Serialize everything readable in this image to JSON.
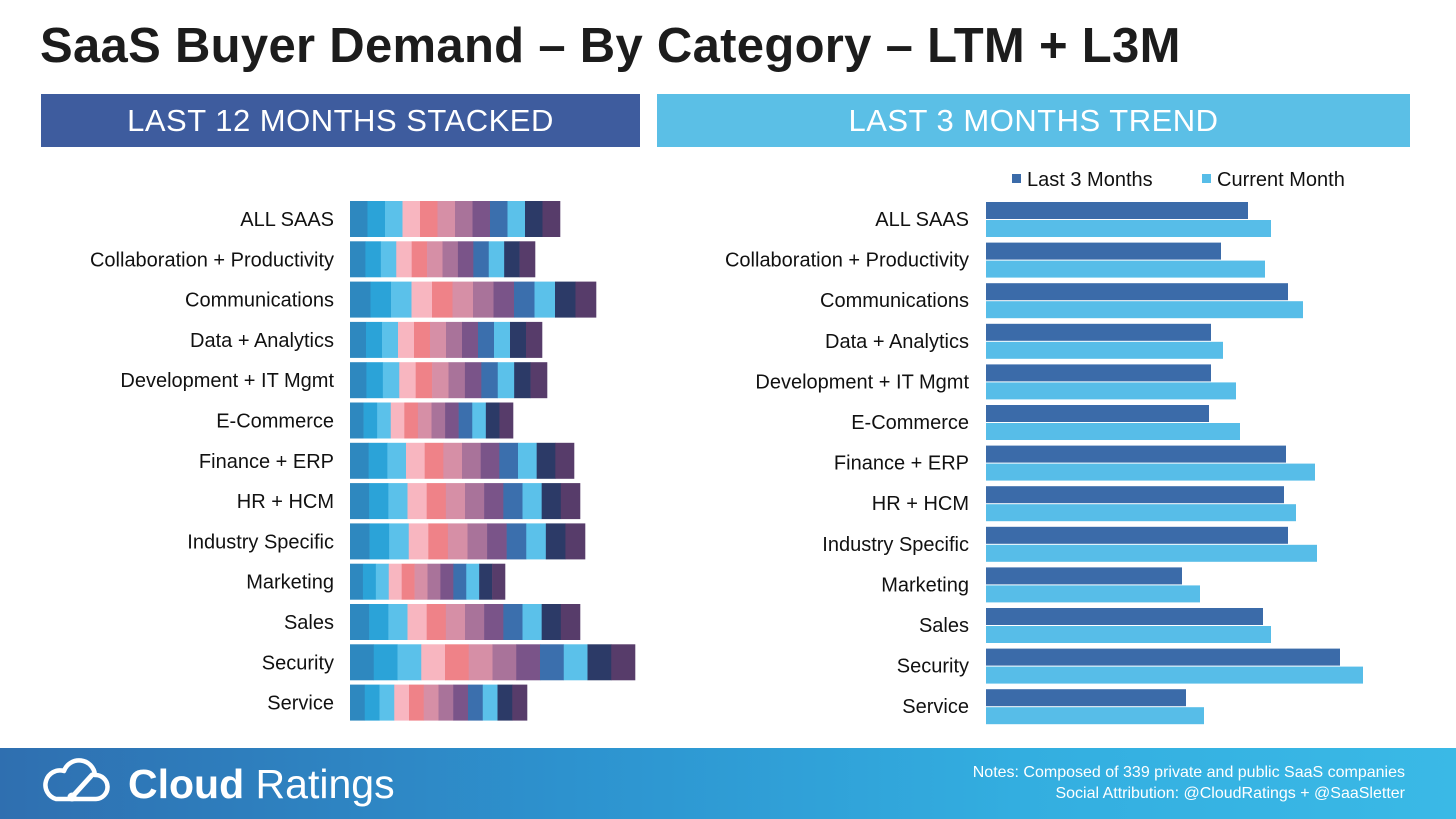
{
  "title": "SaaS Buyer Demand – By Category – LTM + L3M",
  "panels": {
    "ltm_header": "LAST 12 MONTHS STACKED",
    "l3m_header": "LAST 3 MONTHS TREND"
  },
  "footer": {
    "brand_bold": "Cloud",
    "brand_light": "Ratings",
    "notes_line1": "Notes: Composed of 339 private and public SaaS companies",
    "notes_line2": "Social Attribution: @CloudRatings + @SaaSletter"
  },
  "colors": {
    "ltm_header": "#3e5c9e",
    "l3m_header": "#5bbfe6",
    "last3": "#3b6ba9",
    "current": "#57bde8",
    "stack_segments": [
      "#2e88bf",
      "#2ba3d8",
      "#5bc1ea",
      "#f8b6c0",
      "#ef8288",
      "#d68fa6",
      "#a9739a",
      "#7a5489",
      "#3b6fad",
      "#5bc1ea",
      "#2c3a67",
      "#573c6a"
    ]
  },
  "chart_data": [
    {
      "type": "bar",
      "stacked": true,
      "orientation": "horizontal",
      "title": "LAST 12 MONTHS STACKED",
      "segments": 12,
      "segment_axis": "months",
      "categories": [
        "ALL SAAS",
        "Collaboration + Productivity",
        "Communications",
        "Data + Analytics",
        "Development + IT Mgmt",
        "E-Commerce",
        "Finance + ERP",
        "HR + HCM",
        "Industry Specific",
        "Marketing",
        "Sales",
        "Security",
        "Service"
      ],
      "totals": [
        210,
        185,
        246,
        192,
        197,
        163,
        224,
        230,
        235,
        155,
        230,
        285,
        177
      ],
      "xlim": [
        0,
        300
      ],
      "grid": false,
      "legend": "none"
    },
    {
      "type": "bar",
      "orientation": "horizontal",
      "title": "LAST 3 MONTHS TREND",
      "categories": [
        "ALL SAAS",
        "Collaboration + Productivity",
        "Communications",
        "Data + Analytics",
        "Development + IT Mgmt",
        "E-Commerce",
        "Finance + ERP",
        "HR + HCM",
        "Industry Specific",
        "Marketing",
        "Sales",
        "Security",
        "Service"
      ],
      "series": [
        {
          "name": "Last 3 Months",
          "values": [
            262,
            235,
            302,
            225,
            225,
            223,
            300,
            298,
            302,
            196,
            277,
            354,
            200
          ]
        },
        {
          "name": "Current Month",
          "values": [
            285,
            279,
            317,
            237,
            250,
            254,
            329,
            310,
            331,
            214,
            285,
            377,
            218
          ]
        }
      ],
      "xlim": [
        0,
        400
      ],
      "grid": false,
      "legend": "top-right"
    }
  ]
}
